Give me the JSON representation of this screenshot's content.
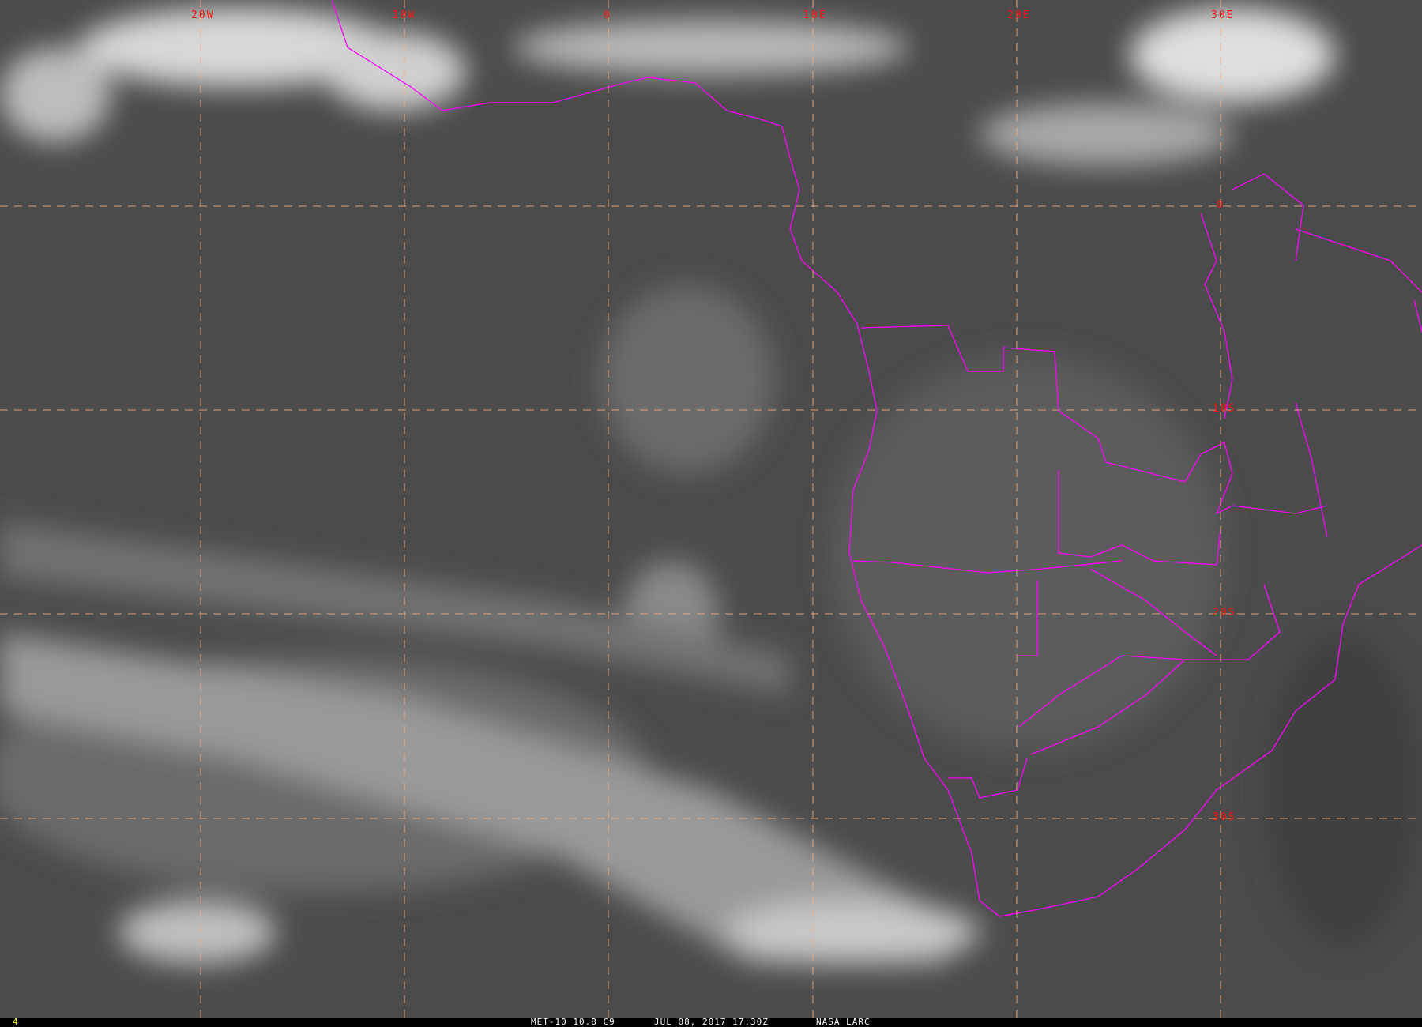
{
  "map": {
    "longitude_labels": [
      "20W",
      "10W",
      "0",
      "10E",
      "20E",
      "30E"
    ],
    "latitude_labels": [
      "0",
      "10S",
      "20S",
      "30S"
    ],
    "grid_color": "#f4b183",
    "label_color": "#ff1010",
    "border_color": "#ff00ff"
  },
  "footer": {
    "frame_number": "4",
    "satellite_channel": "MET-10 10.8 C9",
    "datetime": "JUL 08, 2017 17:30Z",
    "source": "NASA LARC"
  }
}
